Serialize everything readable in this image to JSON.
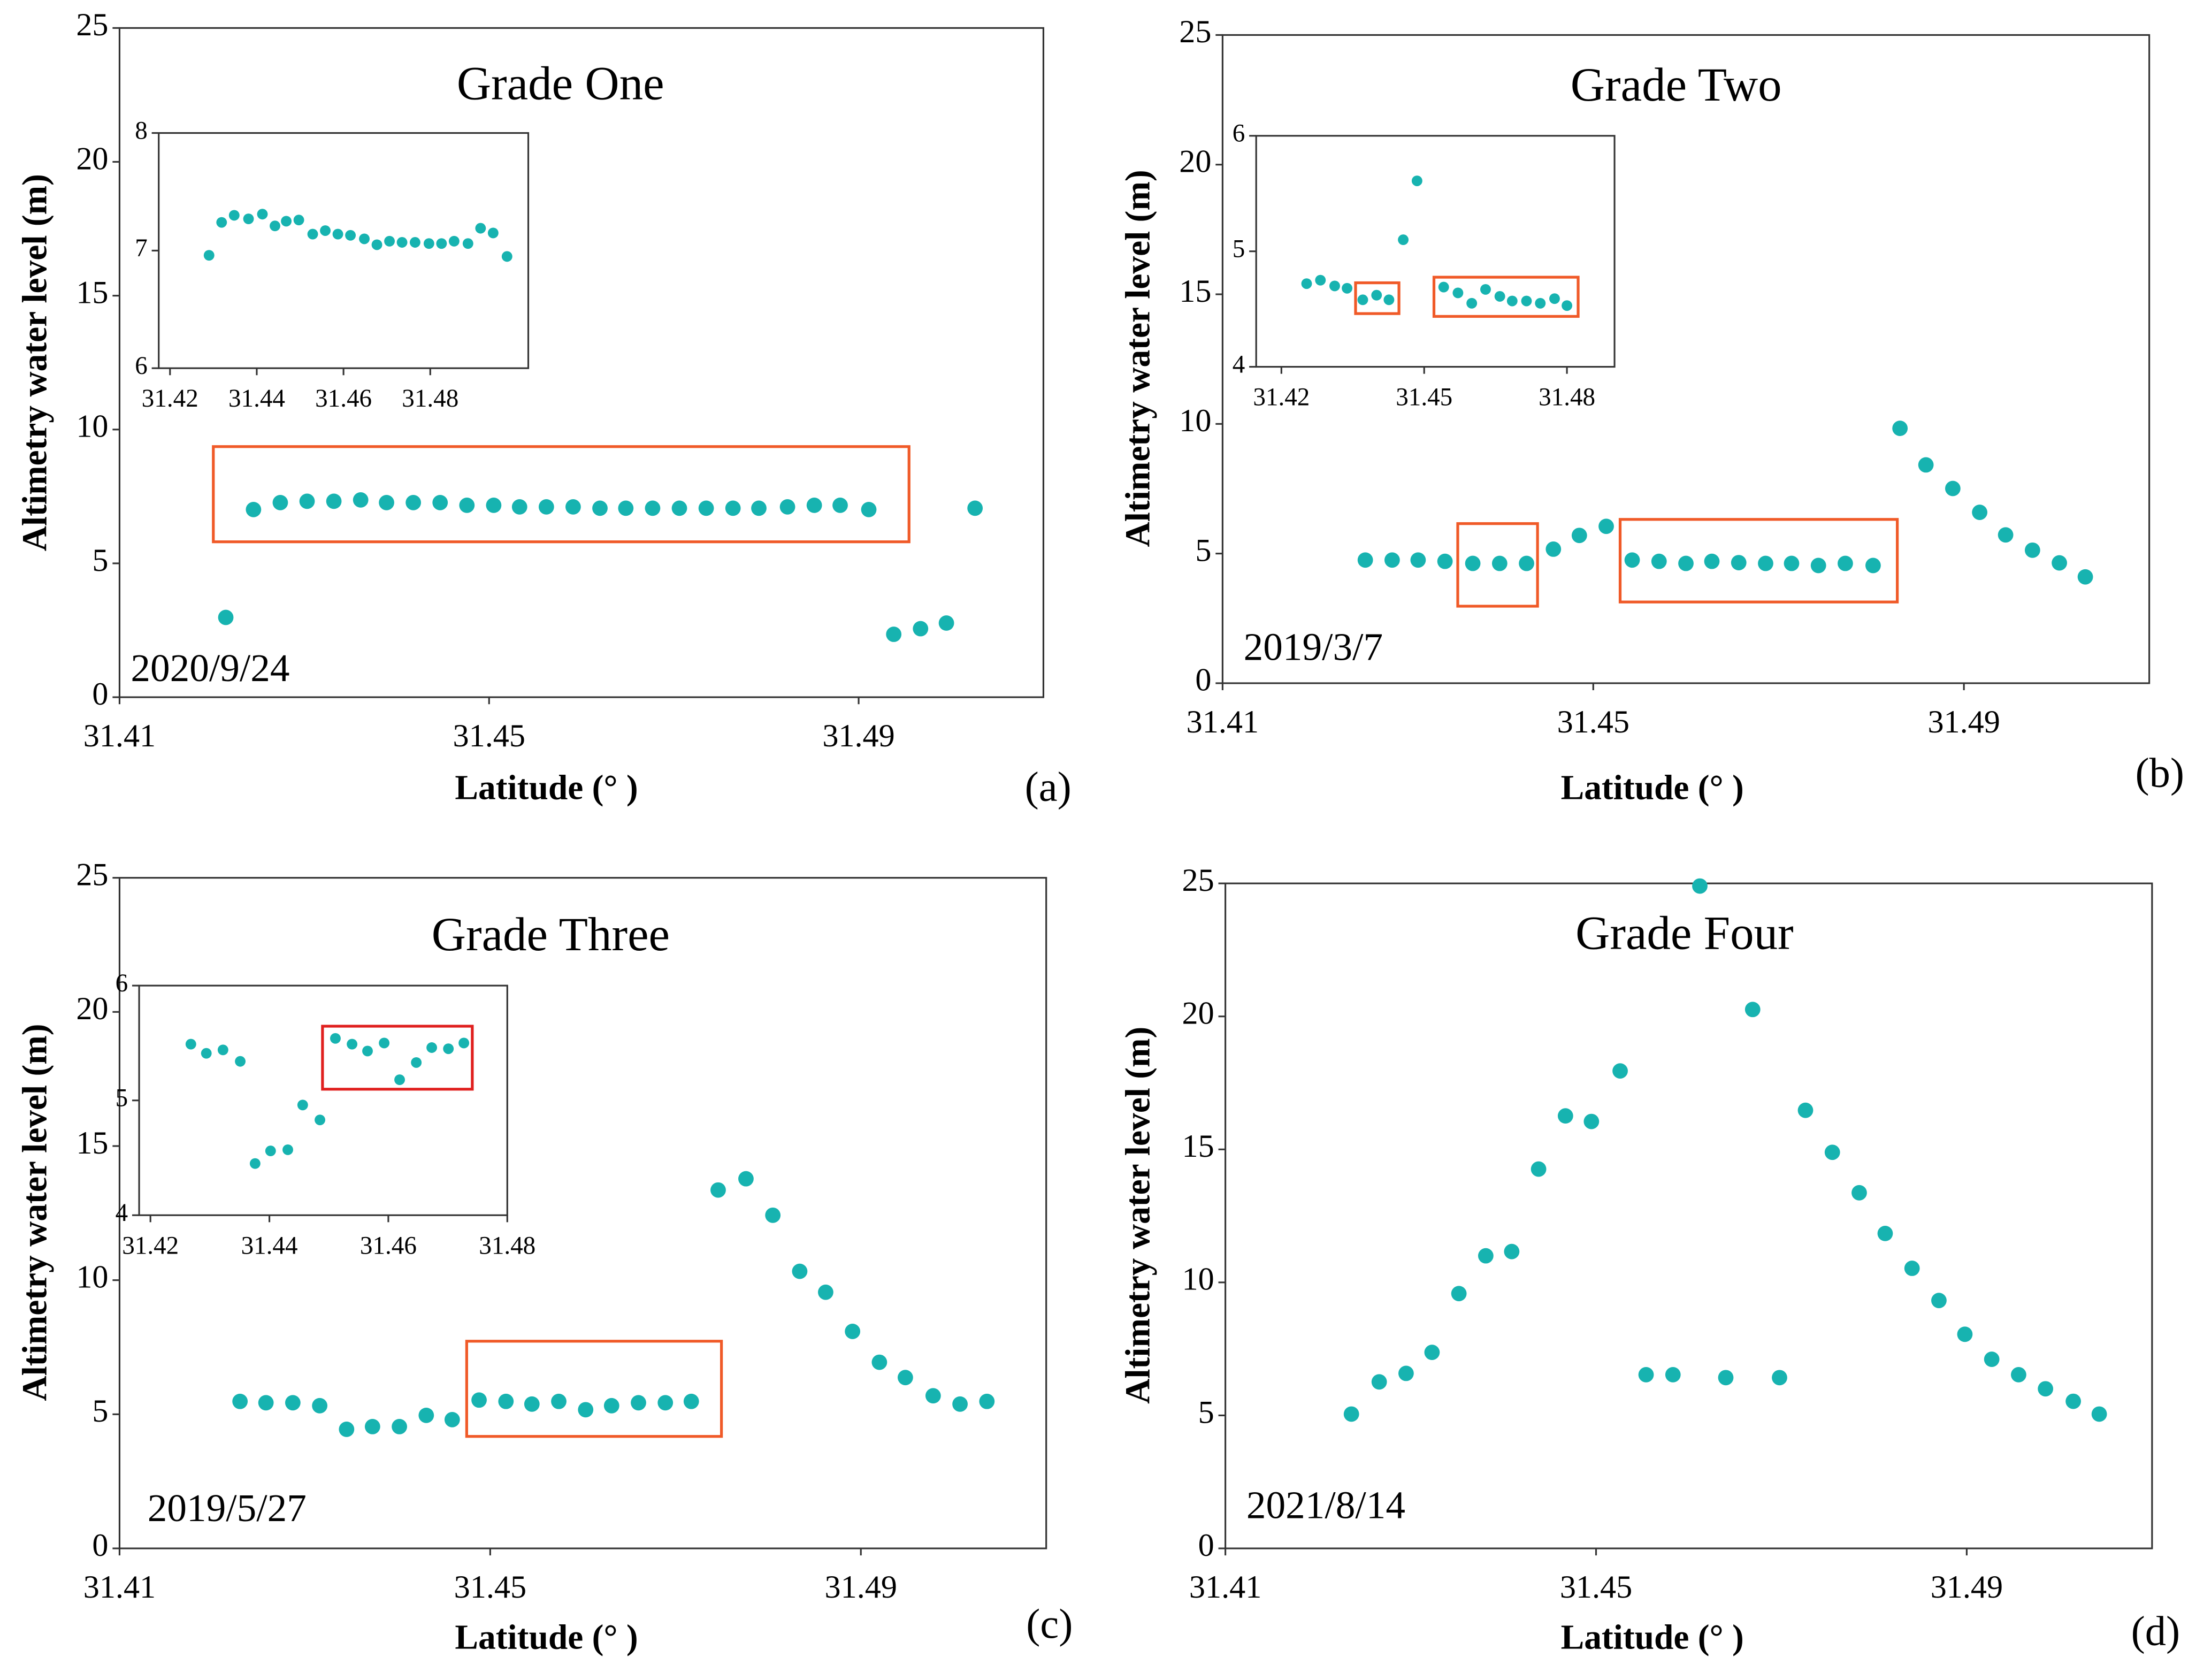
{
  "chart_data": [
    {
      "type": "scatter",
      "title": "Grade One",
      "annotation": "2020/9/24",
      "panel_label": "(a)",
      "xlabel": "Latitude (° )",
      "ylabel": "Altimetry water level (m)",
      "color": "#17b3b0",
      "highlight_color": "#f05a28",
      "xlim": [
        31.41,
        31.51
      ],
      "ylim": [
        0,
        25
      ],
      "xticks": [
        31.41,
        31.45,
        31.49
      ],
      "yticks": [
        0,
        5,
        10,
        15,
        20,
        25
      ],
      "x": [
        31.4215,
        31.4245,
        31.4274,
        31.4303,
        31.4332,
        31.4361,
        31.4389,
        31.4418,
        31.4447,
        31.4476,
        31.4505,
        31.4533,
        31.4562,
        31.4591,
        31.462,
        31.4648,
        31.4677,
        31.4706,
        31.4735,
        31.4764,
        31.4792,
        31.4823,
        31.4852,
        31.488,
        31.4911,
        31.4938,
        31.4967,
        31.4995,
        31.5026
      ],
      "values": [
        2.98,
        7.01,
        7.27,
        7.32,
        7.32,
        7.37,
        7.27,
        7.27,
        7.27,
        7.17,
        7.17,
        7.11,
        7.11,
        7.11,
        7.06,
        7.06,
        7.06,
        7.06,
        7.06,
        7.06,
        7.06,
        7.11,
        7.17,
        7.17,
        7.01,
        2.35,
        2.56,
        2.77,
        7.06
      ],
      "inset": {
        "type": "scatter",
        "xlim": [
          31.4174,
          31.5026
        ],
        "ylim": [
          6,
          8
        ],
        "xticks": [
          31.42,
          31.44,
          31.46,
          31.48
        ],
        "yticks": [
          6,
          7,
          8
        ],
        "x": [
          31.429,
          31.4319,
          31.4348,
          31.4381,
          31.4413,
          31.4442,
          31.4468,
          31.4497,
          31.4529,
          31.4558,
          31.4587,
          31.4616,
          31.4648,
          31.4677,
          31.4706,
          31.4735,
          31.4765,
          31.4797,
          31.4826,
          31.4855,
          31.4887,
          31.4916,
          31.4945,
          31.4977
        ],
        "values": [
          6.96,
          7.24,
          7.3,
          7.27,
          7.31,
          7.21,
          7.25,
          7.26,
          7.14,
          7.17,
          7.14,
          7.13,
          7.1,
          7.05,
          7.08,
          7.07,
          7.07,
          7.06,
          7.06,
          7.08,
          7.06,
          7.19,
          7.15,
          6.95
        ]
      }
    },
    {
      "type": "scatter",
      "title": "Grade Two",
      "annotation": "2019/3/7",
      "panel_label": "(b)",
      "xlabel": "Latitude (° )",
      "ylabel": "Altimetry water level (m)",
      "color": "#17b3b0",
      "highlight_color": "#f05a28",
      "xlim": [
        31.41,
        31.51
      ],
      "ylim": [
        0,
        25
      ],
      "xticks": [
        31.41,
        31.45,
        31.49
      ],
      "yticks": [
        0,
        5,
        10,
        15,
        20,
        25
      ],
      "x": [
        31.4254,
        31.4283,
        31.4311,
        31.434,
        31.437,
        31.4399,
        31.4428,
        31.4457,
        31.4485,
        31.4514,
        31.4542,
        31.4571,
        31.46,
        31.4628,
        31.4657,
        31.4686,
        31.4714,
        31.4743,
        31.4772,
        31.4802,
        31.4831,
        31.4859,
        31.4888,
        31.4917,
        31.4945,
        31.4974,
        31.5003,
        31.5031
      ],
      "values": [
        4.75,
        4.75,
        4.75,
        4.7,
        4.62,
        4.62,
        4.62,
        5.17,
        5.7,
        6.05,
        4.75,
        4.7,
        4.62,
        4.7,
        4.65,
        4.62,
        4.62,
        4.54,
        4.62,
        4.54,
        9.83,
        8.42,
        7.51,
        6.59,
        5.72,
        5.13,
        4.64,
        4.1
      ],
      "inset": {
        "type": "scatter",
        "highlight_color": "#f05a28",
        "xlim": [
          31.4147,
          31.49
        ],
        "ylim": [
          4,
          6
        ],
        "xticks": [
          31.42,
          31.45,
          31.48
        ],
        "yticks": [
          4,
          5,
          6
        ],
        "x": [
          31.4253,
          31.4282,
          31.4312,
          31.4338,
          31.4371,
          31.44,
          31.4426,
          31.4456,
          31.4485,
          31.4541,
          31.4571,
          31.46,
          31.4629,
          31.4659,
          31.4685,
          31.4715,
          31.4744,
          31.4774,
          31.48
        ],
        "values": [
          4.72,
          4.75,
          4.7,
          4.68,
          4.58,
          4.62,
          4.58,
          5.1,
          5.61,
          4.69,
          4.64,
          4.55,
          4.67,
          4.61,
          4.57,
          4.57,
          4.55,
          4.59,
          4.53
        ]
      }
    },
    {
      "type": "scatter",
      "title": "Grade Three",
      "annotation": "2019/5/27",
      "panel_label": "(c)",
      "xlabel": "Latitude (° )",
      "ylabel": "Altimetry water level (m)",
      "color": "#17b3b0",
      "highlight_color": "#f05a28",
      "xlim": [
        31.41,
        31.51
      ],
      "ylim": [
        0,
        25
      ],
      "xticks": [
        31.41,
        31.45,
        31.49
      ],
      "yticks": [
        0,
        5,
        10,
        15,
        20,
        25
      ],
      "x": [
        31.423,
        31.4258,
        31.4287,
        31.4316,
        31.4345,
        31.4373,
        31.4402,
        31.4431,
        31.4459,
        31.4488,
        31.4517,
        31.4545,
        31.4574,
        31.4603,
        31.4631,
        31.466,
        31.4689,
        31.4717,
        31.4746,
        31.4776,
        31.4805,
        31.4834,
        31.4862,
        31.4891,
        31.492,
        31.4948,
        31.4978,
        31.5007,
        31.5036
      ],
      "values": [
        5.48,
        5.43,
        5.43,
        5.32,
        4.44,
        4.54,
        4.54,
        4.96,
        4.8,
        5.53,
        5.48,
        5.38,
        5.48,
        5.17,
        5.32,
        5.43,
        5.43,
        5.48,
        13.36,
        13.78,
        12.42,
        10.33,
        9.55,
        8.09,
        6.94,
        6.37,
        5.69,
        5.38,
        5.48
      ],
      "inset": {
        "type": "scatter",
        "highlight_color": "#e0201f",
        "xlim": [
          31.4181,
          31.48
        ],
        "ylim": [
          4,
          6
        ],
        "xticks": [
          31.42,
          31.44,
          31.46,
          31.48
        ],
        "yticks": [
          4,
          5,
          6
        ],
        "x": [
          31.4268,
          31.4294,
          31.4322,
          31.4351,
          31.4376,
          31.4402,
          31.4431,
          31.4456,
          31.4485,
          31.4511,
          31.4539,
          31.4565,
          31.4593,
          31.4619,
          31.4647,
          31.4673,
          31.4701,
          31.4727
        ],
        "values": [
          5.49,
          5.41,
          5.44,
          5.34,
          4.45,
          4.56,
          4.57,
          4.96,
          4.83,
          5.54,
          5.49,
          5.43,
          5.5,
          5.18,
          5.33,
          5.46,
          5.45,
          5.5
        ]
      }
    },
    {
      "type": "scatter",
      "title": "Grade Four",
      "annotation": "2021/8/14",
      "panel_label": "(d)",
      "xlabel": "Latitude (° )",
      "ylabel": "Altimetry water level (m)",
      "color": "#17b3b0",
      "xlim": [
        31.41,
        31.51
      ],
      "ylim": [
        0,
        25
      ],
      "xticks": [
        31.41,
        31.45,
        31.49
      ],
      "yticks": [
        0,
        5,
        10,
        15,
        20,
        25
      ],
      "x": [
        31.4236,
        31.4266,
        31.4295,
        31.4323,
        31.4352,
        31.4381,
        31.4409,
        31.4438,
        31.4467,
        31.4495,
        31.4526,
        31.4554,
        31.4583,
        31.4612,
        31.464,
        31.4669,
        31.4698,
        31.4726,
        31.4755,
        31.4784,
        31.4812,
        31.4841,
        31.487,
        31.4898,
        31.4927,
        31.4956,
        31.4985,
        31.5015,
        31.5043
      ],
      "values": [
        5.05,
        6.26,
        6.58,
        7.37,
        9.58,
        11.0,
        11.16,
        14.26,
        16.26,
        16.05,
        17.95,
        6.53,
        6.53,
        24.9,
        6.42,
        20.26,
        6.42,
        16.47,
        14.89,
        13.37,
        11.84,
        10.53,
        9.32,
        8.05,
        7.11,
        6.53,
        6.0,
        5.53,
        5.05
      ]
    }
  ]
}
